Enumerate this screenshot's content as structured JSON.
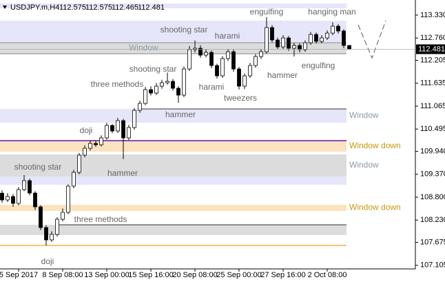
{
  "chart_data": {
    "type": "candlestick",
    "title": "USDJPY.m,H4",
    "categories": [
      null,
      null,
      null,
      "5 Sep 2017",
      null,
      null,
      null,
      null,
      null,
      null,
      null,
      "8 Sep 08:00",
      null,
      null,
      null,
      null,
      null,
      null,
      null,
      "13 Sep 00:00",
      null,
      null,
      null,
      null,
      null,
      null,
      null,
      "15 Sep 16:00",
      null,
      null,
      null,
      null,
      null,
      null,
      null,
      "20 Sep 08:00",
      null,
      null,
      null,
      null,
      null,
      null,
      null,
      "25 Sep 00:00",
      null,
      null,
      null,
      null,
      null,
      null,
      null,
      "27 Sep 16:00",
      null,
      null,
      null,
      null,
      null,
      null,
      null,
      "2 Oct 08:00",
      null,
      null,
      null,
      null
    ],
    "open": [
      108.9,
      108.731,
      108.817,
      108.646,
      108.989,
      109.212,
      108.903,
      108.56,
      108.045,
      107.737,
      107.874,
      108.251,
      108.423,
      109.075,
      109.418,
      109.846,
      110.018,
      110.138,
      110.104,
      110.275,
      110.584,
      110.447,
      110.704,
      110.275,
      110.533,
      110.961,
      111.133,
      111.476,
      111.39,
      111.562,
      111.647,
      111.682,
      111.51,
      111.339,
      111.99,
      112.471,
      112.505,
      112.334,
      112.402,
      112.076,
      111.819,
      112.248,
      112.419,
      111.99,
      111.562,
      111.819,
      112.076,
      112.299,
      112.419,
      113.02,
      112.711,
      112.539,
      112.762,
      112.505,
      112.574,
      112.471,
      112.642,
      112.848,
      112.677,
      112.762,
      112.882,
      113.054,
      112.934,
      112.575
    ],
    "high": [
      108.97,
      108.9,
      108.88,
      109.05,
      109.35,
      109.26,
      108.95,
      108.6,
      108.1,
      107.95,
      108.3,
      108.52,
      109.12,
      109.48,
      109.9,
      110.09,
      110.2,
      110.21,
      110.34,
      110.65,
      110.62,
      110.77,
      110.75,
      110.6,
      111.02,
      111.2,
      111.54,
      111.56,
      111.64,
      111.72,
      111.9,
      111.74,
      111.56,
      112.05,
      112.56,
      112.7,
      112.58,
      112.48,
      112.45,
      112.12,
      112.31,
      112.48,
      112.47,
      112.04,
      111.88,
      112.14,
      112.36,
      112.49,
      113.28,
      113.08,
      112.77,
      112.83,
      112.81,
      112.64,
      112.63,
      112.7,
      112.91,
      112.9,
      112.83,
      112.95,
      113.15,
      113.11,
      112.98,
      112.575
    ],
    "low": [
      108.66,
      108.68,
      108.56,
      108.6,
      108.95,
      108.85,
      108.48,
      107.98,
      107.6,
      107.69,
      107.82,
      108.2,
      108.38,
      109.02,
      109.37,
      109.79,
      109.96,
      110.05,
      110.06,
      110.23,
      110.39,
      110.4,
      109.75,
      110.22,
      110.48,
      110.9,
      111.09,
      111.33,
      111.34,
      111.5,
      111.6,
      111.45,
      111.15,
      111.29,
      111.94,
      112.4,
      112.27,
      112.28,
      112.01,
      111.75,
      111.77,
      112.19,
      111.92,
      111.48,
      111.49,
      111.77,
      112.02,
      112.24,
      112.37,
      112.65,
      112.48,
      112.49,
      112.44,
      112.3,
      112.4,
      112.42,
      112.59,
      112.62,
      112.63,
      112.71,
      112.83,
      112.87,
      112.51,
      112.465
    ],
    "close": [
      108.731,
      108.817,
      108.646,
      108.989,
      109.212,
      108.903,
      108.56,
      108.045,
      107.737,
      107.874,
      108.251,
      108.423,
      109.075,
      109.418,
      109.846,
      110.018,
      110.138,
      110.104,
      110.275,
      110.584,
      110.447,
      110.704,
      110.275,
      110.533,
      110.961,
      111.133,
      111.476,
      111.39,
      111.562,
      111.647,
      111.682,
      111.51,
      111.339,
      111.99,
      112.471,
      112.505,
      112.334,
      112.402,
      112.076,
      111.819,
      112.248,
      112.419,
      111.99,
      111.562,
      111.819,
      112.076,
      112.299,
      112.419,
      113.02,
      112.711,
      112.539,
      112.762,
      112.505,
      112.574,
      112.471,
      112.642,
      112.848,
      112.677,
      112.762,
      112.882,
      113.054,
      112.934,
      112.575,
      112.481
    ],
    "up_color": "#ffffff",
    "down_color": "#000000",
    "ylim": [
      107.016,
      113.62
    ],
    "yticks": [
      {
        "value": 113.33,
        "label": "113.330"
      },
      {
        "value": 112.76,
        "label": "112.760"
      },
      {
        "value": 112.205,
        "label": "112.205"
      },
      {
        "value": 111.635,
        "label": "111.635"
      },
      {
        "value": 111.065,
        "label": "111.065"
      },
      {
        "value": 110.495,
        "label": "110.495"
      },
      {
        "value": 109.94,
        "label": "109.940"
      },
      {
        "value": 109.37,
        "label": "109.370"
      },
      {
        "value": 108.8,
        "label": "108.800"
      },
      {
        "value": 108.23,
        "label": "108.230"
      },
      {
        "value": 107.675,
        "label": "107.675"
      },
      {
        "value": 107.105,
        "label": "107.105"
      }
    ],
    "zones": [
      {
        "range": [
          113.5,
          113.62
        ],
        "color": "#e6e6fa"
      },
      {
        "range": [
          112.642,
          113.191
        ],
        "color": "#e6e6fa"
      },
      {
        "range": [
          112.368,
          112.642
        ],
        "color": "#dcdcdc",
        "label": "Window",
        "label_color": "#8a9aaa"
      },
      {
        "range": [
          110.653,
          110.996
        ],
        "color": "#e6e6fa",
        "label": "Window",
        "label_color": "#8a9aaa"
      },
      {
        "range": [
          109.932,
          110.207
        ],
        "color": "#fbe3c0",
        "label": "Window down",
        "label_color": "#c8960c"
      },
      {
        "range": [
          109.315,
          109.864
        ],
        "color": "#dcdcdc",
        "label": "Window",
        "label_color": "#8a9aaa"
      },
      {
        "range": [
          109.109,
          109.315
        ],
        "color": "#e6e6fa"
      },
      {
        "range": [
          108.457,
          108.611
        ],
        "color": "#fbe3c0",
        "label": "Window down",
        "label_color": "#c8960c"
      },
      {
        "range": [
          107.857,
          108.114
        ],
        "color": "#dcdcdc"
      },
      {
        "range": [
          107.58,
          107.62
        ],
        "color": "#f5c98a"
      }
    ],
    "lines": [
      {
        "value": 110.207,
        "color": "#6a0dad"
      },
      {
        "value": 110.996,
        "color": "#333333"
      },
      {
        "value": 108.114,
        "color": "#333333"
      },
      {
        "value": 112.642,
        "color": "#888888"
      },
      {
        "value": 112.368,
        "color": "#888888"
      }
    ],
    "annotations": [
      "engulfing",
      "hanging man",
      "shooting star",
      "harami",
      "shooting star",
      "three methods",
      "harami",
      "hammer",
      "engulfing",
      "tweezers",
      "hammer",
      "doji",
      "shooting star",
      "hammer",
      "three methods",
      "doji"
    ]
  }
}
